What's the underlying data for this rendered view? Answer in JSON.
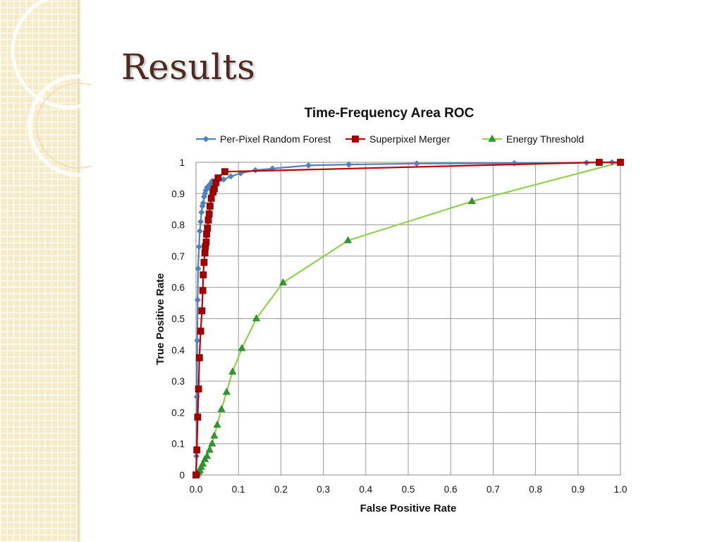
{
  "slide": {
    "title": "Results"
  },
  "colors": {
    "title": "#4f2a20",
    "panel": "#f6ebc8",
    "series": [
      "#4f81bd",
      "#c00000",
      "#92d050"
    ],
    "series_markers": [
      "#4f81bd",
      "#a50000",
      "#2e9a2e"
    ]
  },
  "chart_data": {
    "type": "line",
    "title": "Time-Frequency Area ROC",
    "xlabel": "False Positive Rate",
    "ylabel": "True Positive Rate",
    "xlim": [
      0,
      1.0
    ],
    "ylim": [
      0,
      1
    ],
    "xticks": [
      "0.0",
      "0.1",
      "0.2",
      "0.3",
      "0.4",
      "0.5",
      "0.6",
      "0.7",
      "0.8",
      "0.9",
      "1.0"
    ],
    "yticks": [
      "0",
      "0.1",
      "0.2",
      "0.3",
      "0.4",
      "0.5",
      "0.6",
      "0.7",
      "0.8",
      "0.9",
      "1"
    ],
    "grid": true,
    "legend": "top",
    "series": [
      {
        "name": "Per-Pixel Random Forest",
        "marker": "diamond",
        "x": [
          0.0,
          0.001,
          0.002,
          0.003,
          0.004,
          0.005,
          0.007,
          0.009,
          0.011,
          0.013,
          0.015,
          0.017,
          0.019,
          0.021,
          0.023,
          0.026,
          0.029,
          0.033,
          0.038,
          0.044,
          0.052,
          0.065,
          0.082,
          0.105,
          0.14,
          0.18,
          0.265,
          0.36,
          0.52,
          0.75,
          0.92,
          0.98,
          1.0
        ],
        "y": [
          0.0,
          0.06,
          0.25,
          0.43,
          0.56,
          0.66,
          0.73,
          0.78,
          0.81,
          0.84,
          0.86,
          0.87,
          0.89,
          0.9,
          0.91,
          0.92,
          0.92,
          0.93,
          0.94,
          0.94,
          0.945,
          0.945,
          0.955,
          0.965,
          0.975,
          0.98,
          0.99,
          0.993,
          0.996,
          0.997,
          0.999,
          1.0,
          1.0
        ]
      },
      {
        "name": "Superpixel Merger",
        "marker": "square",
        "x": [
          0.0,
          0.002,
          0.004,
          0.006,
          0.008,
          0.011,
          0.014,
          0.016,
          0.017,
          0.019,
          0.021,
          0.022,
          0.024,
          0.025,
          0.027,
          0.029,
          0.031,
          0.033,
          0.036,
          0.04,
          0.043,
          0.047,
          0.052,
          0.068,
          0.95,
          1.0
        ],
        "y": [
          0.0,
          0.08,
          0.185,
          0.275,
          0.375,
          0.46,
          0.525,
          0.59,
          0.64,
          0.68,
          0.71,
          0.73,
          0.745,
          0.77,
          0.79,
          0.815,
          0.835,
          0.86,
          0.885,
          0.905,
          0.915,
          0.935,
          0.95,
          0.97,
          1.0,
          1.0
        ]
      },
      {
        "name": "Energy Threshold",
        "marker": "triangle",
        "x": [
          0.0,
          0.003,
          0.006,
          0.009,
          0.012,
          0.016,
          0.021,
          0.026,
          0.032,
          0.038,
          0.043,
          0.05,
          0.06,
          0.072,
          0.086,
          0.108,
          0.142,
          0.205,
          0.358,
          0.65,
          1.0
        ],
        "y": [
          0.0,
          0.003,
          0.01,
          0.015,
          0.025,
          0.035,
          0.05,
          0.06,
          0.08,
          0.1,
          0.125,
          0.16,
          0.21,
          0.265,
          0.33,
          0.405,
          0.5,
          0.615,
          0.75,
          0.875,
          1.0
        ]
      }
    ]
  }
}
